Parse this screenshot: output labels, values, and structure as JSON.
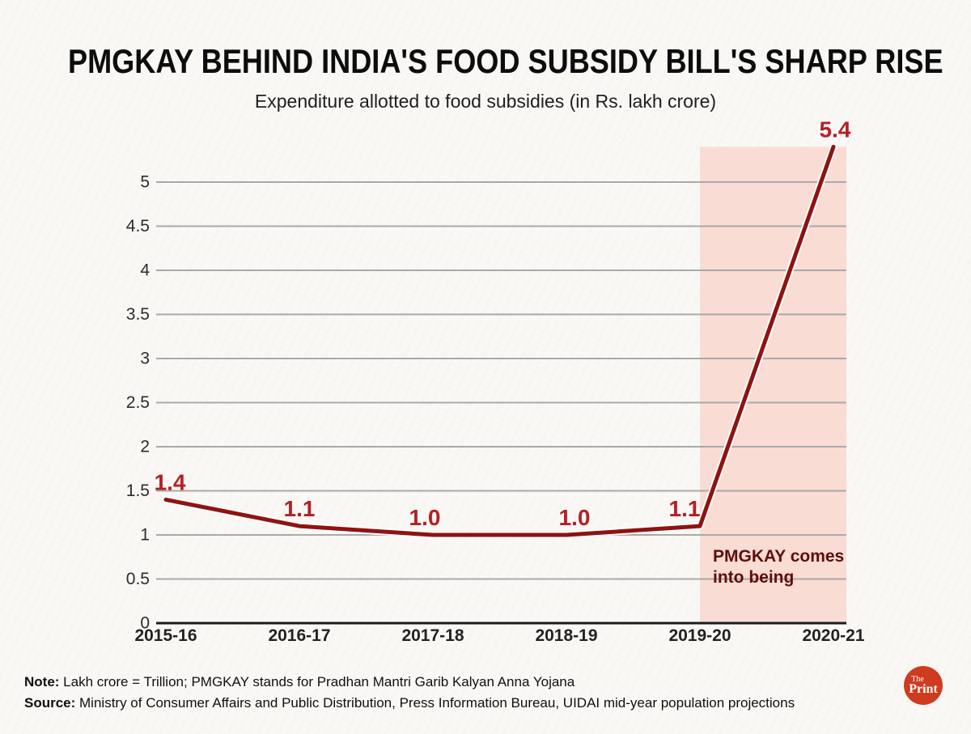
{
  "page": {
    "background": "#faf8f5"
  },
  "header": {
    "title": "PMGKAY BEHIND INDIA'S FOOD SUBSIDY BILL'S SHARP RISE",
    "subtitle": "Expenditure allotted to food subsidies (in Rs. lakh crore)"
  },
  "chart_data": {
    "type": "line",
    "title": "PMGKAY BEHIND INDIA'S FOOD SUBSIDY BILL'S SHARP RISE",
    "subtitle": "Expenditure allotted to food subsidies (in Rs. lakh crore)",
    "categories": [
      "2015-16",
      "2016-17",
      "2017-18",
      "2018-19",
      "2019-20",
      "2020-21"
    ],
    "values": [
      1.4,
      1.1,
      1.0,
      1.0,
      1.1,
      5.4
    ],
    "value_labels": [
      "1.4",
      "1.1",
      "1.0",
      "1.0",
      "1.1",
      "5.4"
    ],
    "xlabel": "",
    "ylabel": "",
    "ylim": [
      0,
      5.4
    ],
    "yticks": [
      0,
      0.5,
      1,
      1.5,
      2,
      2.5,
      3,
      3.5,
      4,
      4.5,
      5
    ],
    "ytick_labels": [
      "0",
      "0.5",
      "1",
      "1.5",
      "2",
      "2.5",
      "3",
      "3.5",
      "4",
      "4.5",
      "5"
    ],
    "grid": true,
    "legend": "none",
    "colors": {
      "line": "#8e1311",
      "line_halo": "#ffffff",
      "data_label": "#b42025",
      "gridline": "#a9a9a9",
      "axis": "#1c1c1c",
      "tick_label": "#2b2b2b",
      "highlight_fill": "#f9dcd3",
      "annotation_text": "#5e0e0e"
    },
    "highlight": {
      "from_category": "2019-20",
      "to": "right-edge",
      "annotation_lines": [
        "PMGKAY comes",
        "into being"
      ]
    }
  },
  "footer": {
    "note_label": "Note:",
    "note_text": " Lakh crore = Trillion; PMGKAY stands for Pradhan Mantri Garib Kalyan Anna Yojana",
    "source_label": "Source:",
    "source_text": " Ministry of Consumer Affairs and Public Distribution, Press Information Bureau, UIDAI mid-year population projections"
  },
  "logo": {
    "line1": "The",
    "line2": "Print",
    "background": "#ce3b1e"
  }
}
